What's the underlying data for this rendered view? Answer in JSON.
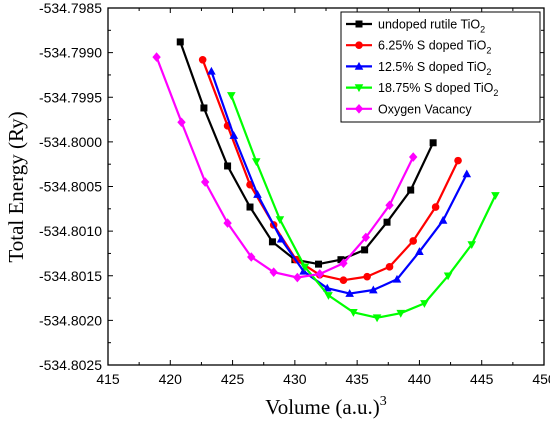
{
  "chart_data": {
    "type": "line",
    "xlabel": "Volume (a.u.)",
    "xlabel_sup": "3",
    "ylabel": "Total Energy (Ry)",
    "xlim": [
      415,
      450
    ],
    "ylim": [
      -534.8025,
      -534.7985
    ],
    "x_ticks": [
      415,
      420,
      425,
      430,
      435,
      440,
      445,
      450
    ],
    "y_ticks": [
      -534.8025,
      -534.802,
      -534.8015,
      -534.801,
      -534.8005,
      -534.8,
      -534.7995,
      -534.799,
      -534.7985
    ],
    "x_tick_labels": [
      "415",
      "420",
      "425",
      "430",
      "435",
      "440",
      "445",
      "450"
    ],
    "y_tick_labels": [
      "-534.8025",
      "-534.8020",
      "-534.8015",
      "-534.8010",
      "-534.8005",
      "-534.8000",
      "-534.7995",
      "-534.7990",
      "-534.7985"
    ],
    "grid": false,
    "legend_position": "top-right",
    "series": [
      {
        "name": "undoped rutile TiO",
        "name_sub": "2",
        "color": "#000000",
        "marker": "square",
        "x": [
          420.8,
          422.7,
          424.6,
          426.4,
          428.2,
          430.0,
          431.9,
          433.7,
          435.6,
          437.4,
          439.3,
          441.1
        ],
        "y": [
          -534.79888,
          -534.79962,
          -534.80027,
          -534.80073,
          -534.80112,
          -534.80132,
          -534.80137,
          -534.80132,
          -534.80121,
          -534.8009,
          -534.80054,
          -534.80001
        ]
      },
      {
        "name": "6.25% S doped TiO",
        "name_sub": "2",
        "color": "#ff0000",
        "marker": "circle",
        "x": [
          422.6,
          424.6,
          426.4,
          428.3,
          430.1,
          432.0,
          433.9,
          435.8,
          437.6,
          439.5,
          441.3,
          443.1
        ],
        "y": [
          -534.79908,
          -534.79982,
          -534.80048,
          -534.80093,
          -534.80132,
          -534.80149,
          -534.80155,
          -534.80151,
          -534.8014,
          -534.80111,
          -534.80073,
          -534.80021
        ]
      },
      {
        "name": "12.5% S doped TiO",
        "name_sub": "2",
        "color": "#0000ff",
        "marker": "triangle",
        "x": [
          423.3,
          425.1,
          427.0,
          428.9,
          430.7,
          432.6,
          434.4,
          436.3,
          438.2,
          440.0,
          441.9,
          443.8
        ],
        "y": [
          -534.79921,
          -534.79993,
          -534.80059,
          -534.80109,
          -534.80145,
          -534.80164,
          -534.8017,
          -534.80166,
          -534.80154,
          -534.80123,
          -534.80088,
          -534.80036
        ]
      },
      {
        "name": "18.75% S doped TiO",
        "name_sub": "2",
        "color": "#00ff00",
        "marker": "triangle-down",
        "x": [
          424.9,
          426.9,
          428.8,
          430.8,
          432.7,
          434.7,
          436.6,
          438.5,
          440.4,
          442.3,
          444.2,
          446.1
        ],
        "y": [
          -534.79948,
          -534.80022,
          -534.80087,
          -534.8014,
          -534.80172,
          -534.80191,
          -534.80197,
          -534.80192,
          -534.80181,
          -534.8015,
          -534.80115,
          -534.8006
        ]
      },
      {
        "name": "Oxygen Vacancy",
        "color": "#ff00ff",
        "marker": "diamond",
        "x": [
          418.9,
          420.9,
          422.8,
          424.6,
          426.5,
          428.3,
          430.2,
          432.0,
          433.9,
          435.7,
          437.6,
          439.5
        ],
        "y": [
          -534.79905,
          -534.79978,
          -534.80045,
          -534.80091,
          -534.80129,
          -534.80146,
          -534.80152,
          -534.80148,
          -534.80136,
          -534.80107,
          -534.80071,
          -534.80017
        ]
      }
    ]
  }
}
